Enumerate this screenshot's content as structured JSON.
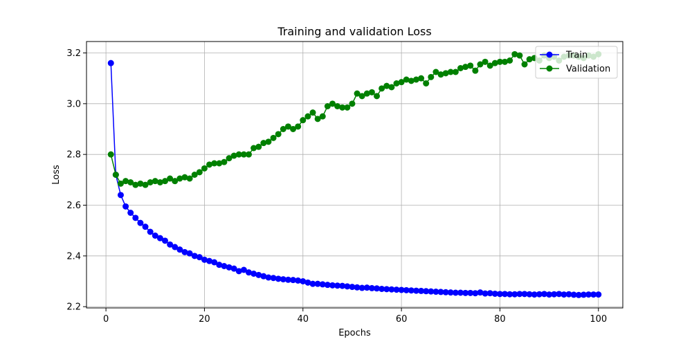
{
  "chart_data": {
    "type": "line",
    "title": "Training and validation Loss",
    "xlabel": "Epochs",
    "ylabel": "Loss",
    "xlim": [
      -3.95,
      104.95
    ],
    "ylim": [
      2.195,
      3.245
    ],
    "xticks": [
      0,
      20,
      40,
      60,
      80,
      100
    ],
    "yticks": [
      2.2,
      2.4,
      2.6,
      2.8,
      3.0,
      3.2
    ],
    "grid": true,
    "legend_position": "top-right",
    "x": [
      1,
      2,
      3,
      4,
      5,
      6,
      7,
      8,
      9,
      10,
      11,
      12,
      13,
      14,
      15,
      16,
      17,
      18,
      19,
      20,
      21,
      22,
      23,
      24,
      25,
      26,
      27,
      28,
      29,
      30,
      31,
      32,
      33,
      34,
      35,
      36,
      37,
      38,
      39,
      40,
      41,
      42,
      43,
      44,
      45,
      46,
      47,
      48,
      49,
      50,
      51,
      52,
      53,
      54,
      55,
      56,
      57,
      58,
      59,
      60,
      61,
      62,
      63,
      64,
      65,
      66,
      67,
      68,
      69,
      70,
      71,
      72,
      73,
      74,
      75,
      76,
      77,
      78,
      79,
      80,
      81,
      82,
      83,
      84,
      85,
      86,
      87,
      88,
      89,
      90,
      91,
      92,
      93,
      94,
      95,
      96,
      97,
      98,
      99,
      100
    ],
    "series": [
      {
        "name": "Train",
        "color": "#0000ff",
        "values": [
          3.16,
          2.72,
          2.64,
          2.595,
          2.57,
          2.55,
          2.53,
          2.515,
          2.495,
          2.48,
          2.47,
          2.46,
          2.445,
          2.435,
          2.425,
          2.415,
          2.41,
          2.4,
          2.395,
          2.385,
          2.38,
          2.375,
          2.365,
          2.36,
          2.355,
          2.35,
          2.34,
          2.345,
          2.335,
          2.33,
          2.325,
          2.32,
          2.315,
          2.313,
          2.31,
          2.308,
          2.306,
          2.305,
          2.303,
          2.3,
          2.295,
          2.29,
          2.29,
          2.288,
          2.286,
          2.284,
          2.283,
          2.282,
          2.28,
          2.278,
          2.276,
          2.274,
          2.275,
          2.273,
          2.272,
          2.27,
          2.269,
          2.268,
          2.267,
          2.266,
          2.265,
          2.264,
          2.263,
          2.262,
          2.261,
          2.26,
          2.259,
          2.258,
          2.257,
          2.256,
          2.255,
          2.255,
          2.254,
          2.254,
          2.253,
          2.256,
          2.252,
          2.253,
          2.251,
          2.25,
          2.25,
          2.249,
          2.249,
          2.25,
          2.25,
          2.249,
          2.248,
          2.249,
          2.25,
          2.248,
          2.249,
          2.25,
          2.248,
          2.249,
          2.247,
          2.246,
          2.247,
          2.248,
          2.248,
          2.248
        ]
      },
      {
        "name": "Validation",
        "color": "#008000",
        "values": [
          2.8,
          2.72,
          2.685,
          2.695,
          2.69,
          2.68,
          2.685,
          2.68,
          2.69,
          2.695,
          2.69,
          2.695,
          2.705,
          2.695,
          2.705,
          2.71,
          2.705,
          2.72,
          2.73,
          2.745,
          2.76,
          2.765,
          2.765,
          2.77,
          2.785,
          2.795,
          2.8,
          2.8,
          2.8,
          2.825,
          2.83,
          2.845,
          2.85,
          2.865,
          2.88,
          2.9,
          2.91,
          2.9,
          2.91,
          2.935,
          2.95,
          2.965,
          2.94,
          2.95,
          2.99,
          3.0,
          2.99,
          2.985,
          2.985,
          3.0,
          3.04,
          3.03,
          3.04,
          3.045,
          3.03,
          3.06,
          3.07,
          3.065,
          3.08,
          3.085,
          3.095,
          3.09,
          3.095,
          3.1,
          3.08,
          3.105,
          3.125,
          3.115,
          3.12,
          3.125,
          3.125,
          3.14,
          3.145,
          3.15,
          3.13,
          3.155,
          3.165,
          3.15,
          3.16,
          3.165,
          3.165,
          3.17,
          3.195,
          3.19,
          3.155,
          3.175,
          3.18,
          3.17,
          3.19,
          3.18,
          3.185,
          3.17,
          3.185,
          3.19,
          3.19,
          3.185,
          3.18,
          3.19,
          3.185,
          3.195
        ]
      }
    ]
  }
}
